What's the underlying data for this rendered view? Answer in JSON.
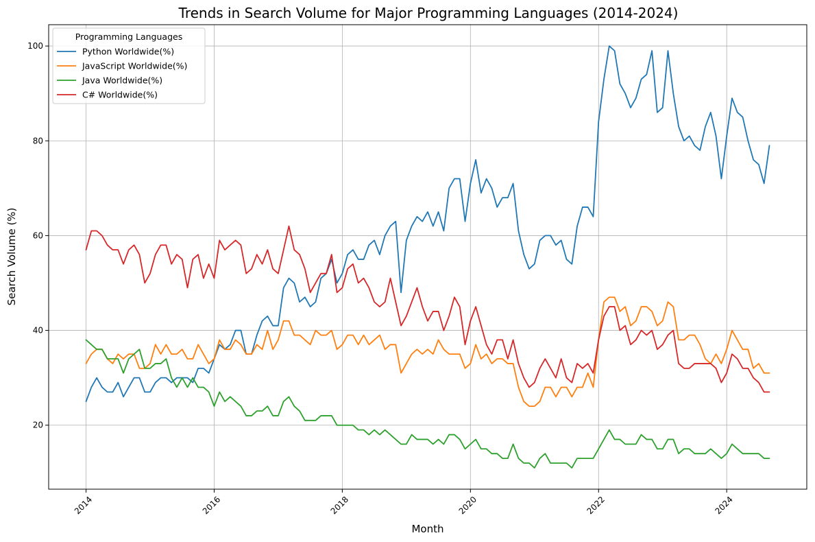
{
  "chart_data": {
    "type": "line",
    "title": "Trends in Search Volume for Major Programming Languages (2014-2024)",
    "xlabel": "Month",
    "ylabel": "Search Volume (%)",
    "x_start": "2014-01",
    "x_tick_labels": [
      "2014",
      "2016",
      "2018",
      "2020",
      "2022",
      "2024"
    ],
    "y_ticks": [
      20,
      40,
      60,
      80,
      100
    ],
    "xlim": [
      "2013-06",
      "2025-04"
    ],
    "ylim": [
      6.5,
      104.5
    ],
    "grid": true,
    "legend": {
      "title": "Programming Languages",
      "placement": "top-left"
    },
    "series": [
      {
        "name": "Python Worldwide(%)",
        "color": "#1f77b4",
        "values": [
          25,
          28,
          30,
          28,
          27,
          27,
          29,
          26,
          28,
          30,
          30,
          27,
          27,
          29,
          30,
          30,
          29,
          30,
          30,
          30,
          29,
          32,
          32,
          31,
          34,
          37,
          36,
          37,
          40,
          40,
          35,
          35,
          39,
          42,
          43,
          41,
          41,
          49,
          51,
          50,
          46,
          47,
          45,
          46,
          51,
          52,
          55,
          50,
          52,
          56,
          57,
          55,
          55,
          58,
          59,
          56,
          60,
          62,
          63,
          48,
          59,
          62,
          64,
          63,
          65,
          62,
          65,
          61,
          70,
          72,
          72,
          63,
          71,
          76,
          69,
          72,
          70,
          66,
          68,
          68,
          71,
          61,
          56,
          53,
          54,
          59,
          60,
          60,
          58,
          59,
          55,
          54,
          62,
          66,
          66,
          64,
          84,
          93,
          100,
          99,
          92,
          90,
          87,
          89,
          93,
          94,
          99,
          86,
          87,
          99,
          90,
          83,
          80,
          81,
          79,
          78,
          83,
          86,
          81,
          72,
          81,
          89,
          86,
          85,
          80,
          76,
          75,
          71,
          79
        ]
      },
      {
        "name": "JavaScript Worldwide(%)",
        "color": "#ff7f0e",
        "values": [
          33,
          35,
          36,
          36,
          34,
          33,
          35,
          34,
          35,
          35,
          32,
          32,
          33,
          37,
          35,
          37,
          35,
          35,
          36,
          34,
          34,
          37,
          35,
          33,
          34,
          38,
          36,
          36,
          38,
          37,
          35,
          35,
          37,
          36,
          40,
          36,
          38,
          42,
          42,
          39,
          39,
          38,
          37,
          40,
          39,
          39,
          40,
          36,
          37,
          39,
          39,
          37,
          39,
          37,
          38,
          39,
          36,
          37,
          37,
          31,
          33,
          35,
          36,
          35,
          36,
          35,
          38,
          36,
          35,
          35,
          35,
          32,
          33,
          37,
          34,
          35,
          33,
          34,
          34,
          33,
          33,
          28,
          25,
          24,
          24,
          25,
          28,
          28,
          26,
          28,
          28,
          26,
          28,
          28,
          31,
          28,
          38,
          46,
          47,
          47,
          44,
          45,
          41,
          42,
          45,
          45,
          44,
          41,
          42,
          46,
          45,
          38,
          38,
          39,
          39,
          37,
          34,
          33,
          35,
          33,
          36,
          40,
          38,
          36,
          36,
          32,
          33,
          31,
          31
        ]
      },
      {
        "name": "Java Worldwide(%)",
        "color": "#2ca02c",
        "values": [
          38,
          37,
          36,
          36,
          34,
          34,
          34,
          31,
          34,
          35,
          36,
          32,
          32,
          33,
          33,
          34,
          30,
          28,
          30,
          28,
          30,
          28,
          28,
          27,
          24,
          27,
          25,
          26,
          25,
          24,
          22,
          22,
          23,
          23,
          24,
          22,
          22,
          25,
          26,
          24,
          23,
          21,
          21,
          21,
          22,
          22,
          22,
          20,
          20,
          20,
          20,
          19,
          19,
          18,
          19,
          18,
          19,
          18,
          17,
          16,
          16,
          18,
          17,
          17,
          17,
          16,
          17,
          16,
          18,
          18,
          17,
          15,
          16,
          17,
          15,
          15,
          14,
          14,
          13,
          13,
          16,
          13,
          12,
          12,
          11,
          13,
          14,
          12,
          12,
          12,
          12,
          11,
          13,
          13,
          13,
          13,
          15,
          17,
          19,
          17,
          17,
          16,
          16,
          16,
          18,
          17,
          17,
          15,
          15,
          17,
          17,
          14,
          15,
          15,
          14,
          14,
          14,
          15,
          14,
          13,
          14,
          16,
          15,
          14,
          14,
          14,
          14,
          13,
          13
        ]
      },
      {
        "name": "C# Worldwide(%)",
        "color": "#d62728",
        "values": [
          57,
          61,
          61,
          60,
          58,
          57,
          57,
          54,
          57,
          58,
          56,
          50,
          52,
          56,
          58,
          58,
          54,
          56,
          55,
          49,
          55,
          56,
          51,
          54,
          51,
          59,
          57,
          58,
          59,
          58,
          52,
          53,
          56,
          54,
          57,
          53,
          52,
          57,
          62,
          57,
          56,
          53,
          48,
          50,
          52,
          52,
          56,
          48,
          49,
          53,
          54,
          50,
          51,
          49,
          46,
          45,
          46,
          51,
          46,
          41,
          43,
          46,
          49,
          45,
          42,
          44,
          44,
          40,
          43,
          47,
          45,
          37,
          42,
          45,
          41,
          37,
          35,
          38,
          38,
          34,
          38,
          33,
          30,
          28,
          29,
          32,
          34,
          32,
          30,
          34,
          30,
          29,
          33,
          32,
          33,
          31,
          38,
          43,
          45,
          45,
          40,
          41,
          37,
          38,
          40,
          39,
          40,
          36,
          37,
          39,
          40,
          33,
          32,
          32,
          33,
          33,
          33,
          33,
          32,
          29,
          31,
          35,
          34,
          32,
          32,
          30,
          29,
          27,
          27
        ]
      }
    ]
  }
}
